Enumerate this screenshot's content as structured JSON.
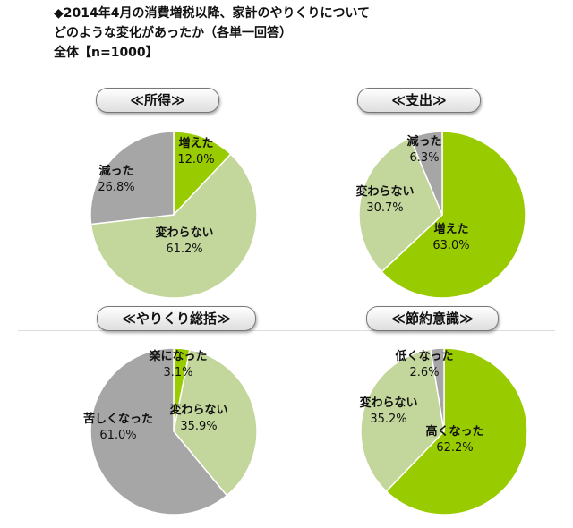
{
  "title": {
    "line1": "◆2014年4月の消費増税以降、家計のやりくりについて",
    "line2": "どのような変化があったか（各単一回答）",
    "line3": "全体【n=1000】"
  },
  "colors": {
    "dark_green": "#99cc00",
    "light_green": "#c3d69b",
    "gray": "#a6a6a6"
  },
  "chart_data": [
    {
      "type": "pie",
      "title": "≪所得≫",
      "slices": [
        {
          "label": "増えた",
          "value": 12.0,
          "pct_text": "12.0%",
          "color": "#99cc00"
        },
        {
          "label": "変わらない",
          "value": 61.2,
          "pct_text": "61.2%",
          "color": "#c3d69b"
        },
        {
          "label": "減った",
          "value": 26.8,
          "pct_text": "26.8%",
          "color": "#a6a6a6"
        }
      ]
    },
    {
      "type": "pie",
      "title": "≪支出≫",
      "slices": [
        {
          "label": "増えた",
          "value": 63.0,
          "pct_text": "63.0%",
          "color": "#99cc00"
        },
        {
          "label": "変わらない",
          "value": 30.7,
          "pct_text": "30.7%",
          "color": "#c3d69b"
        },
        {
          "label": "減った",
          "value": 6.3,
          "pct_text": "6.3%",
          "color": "#a6a6a6"
        }
      ]
    },
    {
      "type": "pie",
      "title": "≪やりくり総括≫",
      "slices": [
        {
          "label": "楽になった",
          "value": 3.1,
          "pct_text": "3.1%",
          "color": "#99cc00"
        },
        {
          "label": "変わらない",
          "value": 35.9,
          "pct_text": "35.9%",
          "color": "#c3d69b"
        },
        {
          "label": "苦しくなった",
          "value": 61.0,
          "pct_text": "61.0%",
          "color": "#a6a6a6"
        }
      ]
    },
    {
      "type": "pie",
      "title": "≪節約意識≫",
      "slices": [
        {
          "label": "高くなった",
          "value": 62.2,
          "pct_text": "62.2%",
          "color": "#99cc00"
        },
        {
          "label": "変わらない",
          "value": 35.2,
          "pct_text": "35.2%",
          "color": "#c3d69b"
        },
        {
          "label": "低くなった",
          "value": 2.6,
          "pct_text": "2.6%",
          "color": "#a6a6a6"
        }
      ]
    }
  ]
}
